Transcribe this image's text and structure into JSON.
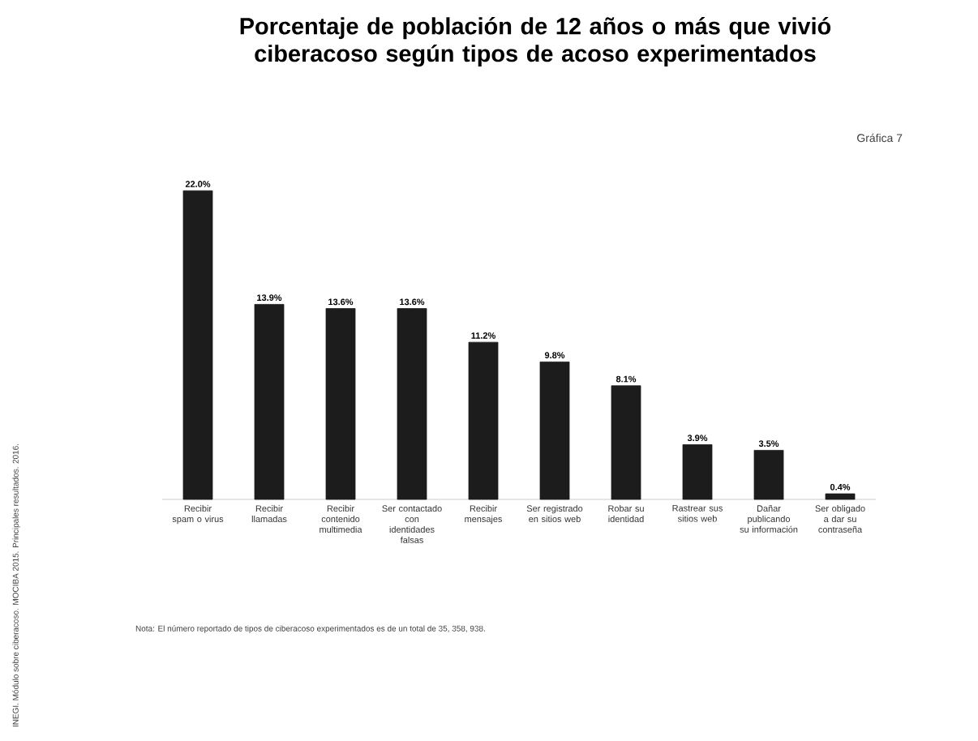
{
  "chart_data": {
    "type": "bar",
    "title": "Porcentaje de población de 12 años o más que vivió ciberacoso según tipos de acoso experimentados",
    "categories": [
      "Recibir spam o virus",
      "Recibir llamadas",
      "Recibir contenido multimedia",
      "Ser contactado con identidades falsas",
      "Recibir mensajes",
      "Ser registrado en sitios web",
      "Robar su identidad",
      "Rastrear sus sitios web",
      "Dañar publicando su información",
      "Ser obligado a dar su contraseña"
    ],
    "values": [
      22.0,
      13.9,
      13.6,
      13.6,
      11.2,
      9.8,
      8.1,
      3.9,
      3.5,
      0.4
    ],
    "value_labels": [
      "22.0%",
      "13.9%",
      "13.6%",
      "13.6%",
      "11.2%",
      "9.8%",
      "8.1%",
      "3.9%",
      "3.5%",
      "0.4%"
    ],
    "color": "#1c1c1c",
    "annotations": [
      "Gráfica 7",
      "Nota: El número reportado de tipos de ciberacoso experimentados es de un total de 35, 358, 938.",
      "INEGI. Módulo sobre ciberacoso. MOCIBA 2015. Principales resultados. 2016."
    ]
  }
}
